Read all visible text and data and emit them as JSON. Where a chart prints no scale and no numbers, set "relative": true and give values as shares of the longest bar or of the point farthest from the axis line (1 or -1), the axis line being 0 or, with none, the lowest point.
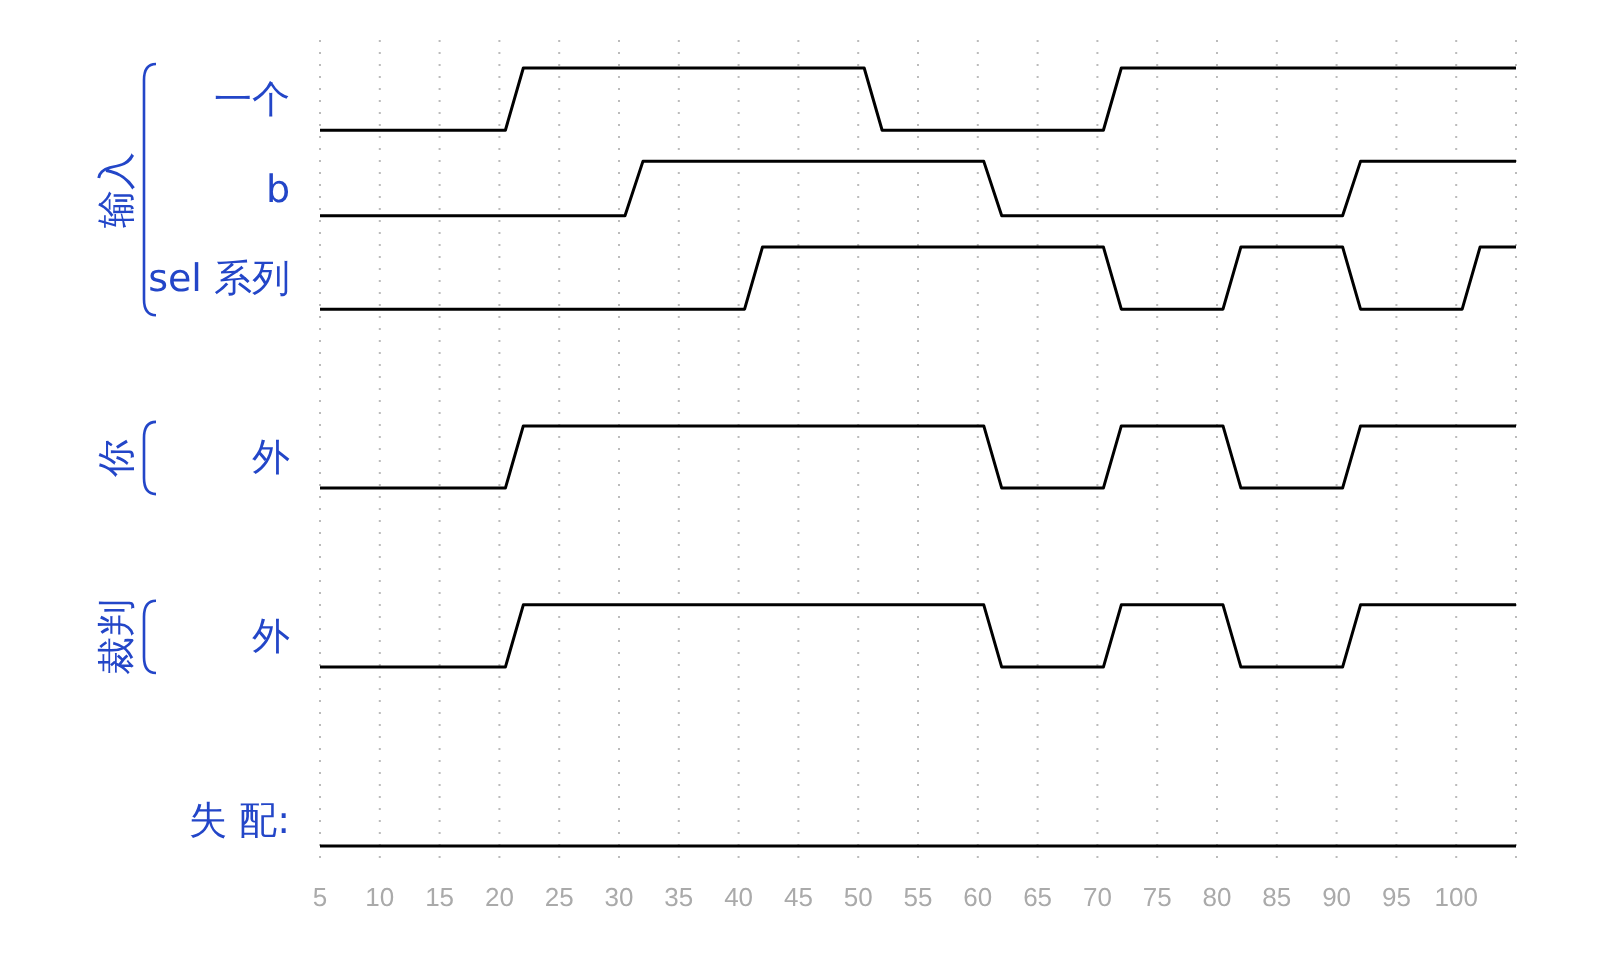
{
  "chart_data": {
    "type": "line",
    "relative": true,
    "grid": "x",
    "xlim": [
      5,
      105
    ],
    "xticks": [
      5,
      10,
      15,
      20,
      25,
      30,
      35,
      40,
      45,
      50,
      55,
      60,
      65,
      70,
      75,
      80,
      85,
      90,
      95,
      100,
      {
        "value": 105,
        "label": null
      }
    ],
    "tick_labels": "x",
    "annotations": [
      "输入",
      "你",
      "裁判"
    ],
    "series": [
      {
        "name": "一个",
        "color": "#000000",
        "x": [
          5,
          20.5,
          22,
          50.5,
          52,
          70.5,
          72,
          105
        ],
        "values": [
          0.92,
          0.92,
          1,
          1,
          0.92,
          0.92,
          1,
          1
        ]
      },
      {
        "name": "b",
        "color": "#000000",
        "x": [
          5,
          30.5,
          32,
          60.5,
          62,
          90.5,
          92,
          105
        ],
        "values": [
          0.81,
          0.81,
          0.88,
          0.88,
          0.81,
          0.81,
          0.88,
          0.88
        ]
      },
      {
        "name": "sel 系列",
        "color": "#000000",
        "x": [
          5,
          40.5,
          42,
          70.5,
          72,
          80.5,
          82,
          90.5,
          92,
          100.5,
          102,
          105
        ],
        "values": [
          0.69,
          0.69,
          0.77,
          0.77,
          0.69,
          0.69,
          0.77,
          0.77,
          0.69,
          0.69,
          0.77,
          0.77
        ]
      },
      {
        "name": "外",
        "color": "#000000",
        "x": [
          5,
          20.5,
          22,
          60.5,
          62,
          70.5,
          72,
          80.5,
          82,
          90.5,
          92,
          105
        ],
        "values": [
          0.46,
          0.46,
          0.54,
          0.54,
          0.46,
          0.46,
          0.54,
          0.54,
          0.46,
          0.46,
          0.54,
          0.54
        ]
      },
      {
        "name": "外",
        "color": "#000000",
        "x": [
          5,
          20.5,
          22,
          60.5,
          62,
          70.5,
          72,
          80.5,
          82,
          90.5,
          92,
          105
        ],
        "values": [
          0.23,
          0.23,
          0.31,
          0.31,
          0.23,
          0.23,
          0.31,
          0.31,
          0.23,
          0.23,
          0.31,
          0.31
        ]
      },
      {
        "name": "失 配:",
        "color": "#000000",
        "x": [
          5,
          105
        ],
        "values": [
          0,
          0
        ]
      }
    ]
  }
}
